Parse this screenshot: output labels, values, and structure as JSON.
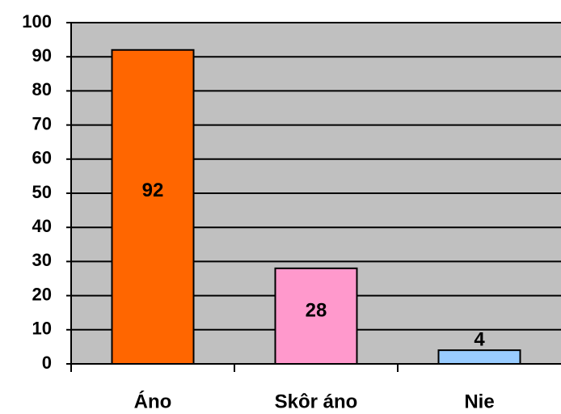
{
  "chart_data": {
    "type": "bar",
    "categories": [
      "Áno",
      "Skôr áno",
      "Nie"
    ],
    "values": [
      92,
      28,
      4
    ],
    "colors": [
      "#ff6600",
      "#ff99cc",
      "#99ccff"
    ],
    "ylim": [
      0,
      100
    ],
    "yticks": [
      0,
      10,
      20,
      30,
      40,
      50,
      60,
      70,
      80,
      90,
      100
    ],
    "grid": true
  }
}
